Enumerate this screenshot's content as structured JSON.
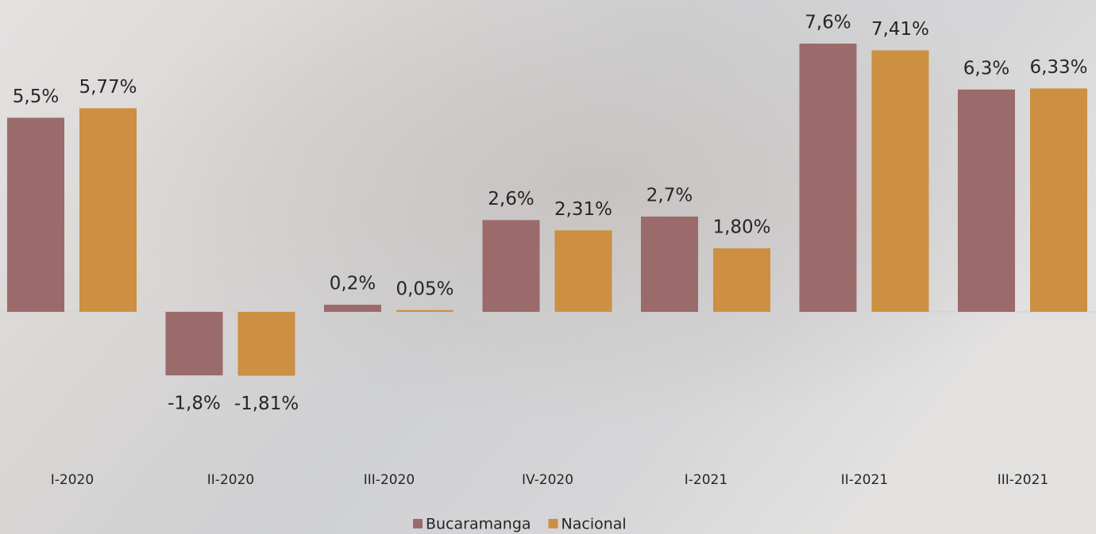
{
  "chart_data": {
    "type": "bar",
    "categories": [
      "I-2020",
      "II-2020",
      "III-2020",
      "IV-2020",
      "I-2021",
      "II-2021",
      "III-2021"
    ],
    "series": [
      {
        "name": "Bucaramanga",
        "color": "#9b6a6a",
        "values": [
          5.5,
          -1.8,
          0.2,
          2.6,
          2.7,
          7.6,
          6.3
        ],
        "value_labels": [
          "5,5%",
          "-1,8%",
          "0,2%",
          "2,6%",
          "2,7%",
          "7,6%",
          "6,3%"
        ]
      },
      {
        "name": "Nacional",
        "color": "#cd8f42",
        "values": [
          5.77,
          -1.81,
          0.05,
          2.31,
          1.8,
          7.41,
          6.33
        ],
        "value_labels": [
          "5,77%",
          "-1,81%",
          "0,05%",
          "2,31%",
          "1,80%",
          "7,41%",
          "6,33%"
        ]
      }
    ]
  }
}
